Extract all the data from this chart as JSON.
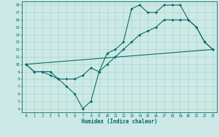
{
  "bg_color": "#cce9e5",
  "grid_color": "#aad4ce",
  "line_color": "#006666",
  "xlabel": "Humidex (Indice chaleur)",
  "xlim": [
    -0.5,
    23.5
  ],
  "ylim": [
    3.5,
    18.5
  ],
  "yticks": [
    4,
    5,
    6,
    7,
    8,
    9,
    10,
    11,
    12,
    13,
    14,
    15,
    16,
    17,
    18
  ],
  "xticks": [
    0,
    1,
    2,
    3,
    4,
    5,
    6,
    7,
    8,
    9,
    10,
    11,
    12,
    13,
    14,
    15,
    16,
    17,
    18,
    19,
    20,
    21,
    22,
    23
  ],
  "line1_x": [
    0,
    1,
    2,
    3,
    4,
    5,
    6,
    7,
    8,
    9,
    10,
    11,
    12,
    13,
    14,
    15,
    16,
    17,
    18,
    19,
    20,
    21,
    22,
    23
  ],
  "line1_y": [
    10,
    9,
    9,
    9,
    8,
    7,
    6,
    4,
    5,
    9,
    11.5,
    12,
    13,
    17.5,
    18,
    17,
    17,
    18,
    18,
    18,
    16,
    15,
    13,
    12
  ],
  "line2_x": [
    0,
    1,
    2,
    3,
    4,
    5,
    6,
    7,
    8,
    9,
    10,
    11,
    12,
    13,
    14,
    15,
    16,
    17,
    18,
    19,
    20,
    21,
    22,
    23
  ],
  "line2_y": [
    10,
    9,
    9,
    8.5,
    8,
    8,
    8,
    8.5,
    9.5,
    9,
    10,
    11,
    12,
    13,
    14,
    14.5,
    15,
    16,
    16,
    16,
    16,
    15,
    13,
    12
  ],
  "line3_x": [
    0,
    23
  ],
  "line3_y": [
    10,
    12
  ]
}
